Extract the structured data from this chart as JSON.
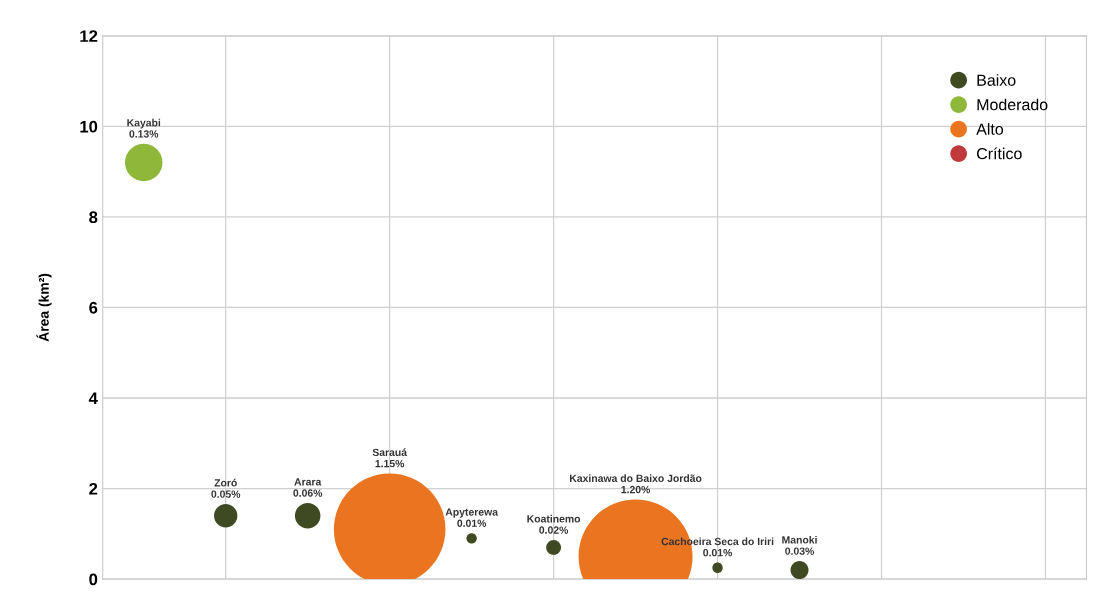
{
  "chart_data": {
    "type": "bubble",
    "ylabel": "Área (km²)",
    "categories": [
      null,
      null,
      null,
      null,
      null,
      null,
      null,
      null,
      null,
      null,
      null,
      null
    ],
    "ylim": [
      0,
      12
    ],
    "yticks": [
      0,
      2,
      4,
      6,
      8,
      10,
      12
    ],
    "grid": true,
    "legend": "top right",
    "series": [
      {
        "name": "Baixo",
        "color": "#3f4a22",
        "values": [
          null,
          1.4,
          1.4,
          null,
          0.9,
          0.7,
          null,
          0.25,
          0.2,
          null,
          null,
          null
        ],
        "sizes": [
          null,
          0.042,
          0.05,
          null,
          0.0083,
          0.017,
          null,
          0.0083,
          0.025,
          null,
          null,
          null
        ]
      },
      {
        "name": "Moderado",
        "color": "#8fb83a",
        "values": [
          9.2,
          null,
          null,
          null,
          null,
          null,
          null,
          null,
          null,
          null,
          null,
          null
        ],
        "sizes": [
          0.108,
          null,
          null,
          null,
          null,
          null,
          null,
          null,
          null,
          null,
          null,
          null
        ]
      },
      {
        "name": "Alto",
        "color": "#ea7420",
        "values": [
          null,
          null,
          null,
          1.1,
          null,
          null,
          0.5,
          null,
          null,
          null,
          null,
          null
        ],
        "sizes": [
          null,
          null,
          null,
          0.958,
          null,
          null,
          1,
          null,
          null,
          null,
          null,
          null
        ]
      },
      {
        "name": "Crítico",
        "color": "#c0393b",
        "values": [
          null,
          null,
          null,
          null,
          null,
          null,
          null,
          null,
          null,
          null,
          null,
          null
        ]
      }
    ],
    "annotations": [
      "Kayabi\n0.13%",
      "Zoró\n0.05%",
      "Arara\n0.06%",
      "Sarauá\n1.15%",
      "Apyterewa\n0.01%",
      "Koatinemo\n0.02%",
      "Kaxinawa do Baixo Jordão\n1.20%",
      "Cachoeira Seca do Iriri\n0.01%",
      "Manoki\n0.03%"
    ]
  }
}
